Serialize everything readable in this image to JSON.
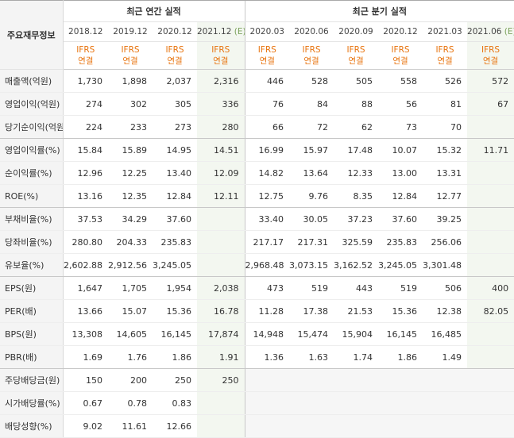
{
  "corner_label": "주요재무정보",
  "groups": {
    "annual": "최근 연간 실적",
    "quarterly": "최근 분기 실적"
  },
  "periods": [
    "2018.12",
    "2019.12",
    "2020.12",
    "2021.12",
    "2020.03",
    "2020.06",
    "2020.09",
    "2020.12",
    "2021.03",
    "2021.06"
  ],
  "estimate_tag": "(E)",
  "ifrs_top": "IFRS",
  "ifrs_bottom": "연결",
  "rows": [
    {
      "label": "매출액(억원)",
      "values": [
        "1,730",
        "1,898",
        "2,037",
        "2,316",
        "446",
        "528",
        "505",
        "558",
        "526",
        "572"
      ]
    },
    {
      "label": "영업이익(억원)",
      "values": [
        "274",
        "302",
        "305",
        "336",
        "76",
        "84",
        "88",
        "56",
        "81",
        "67"
      ]
    },
    {
      "label": "당기순이익(억원)",
      "values": [
        "224",
        "233",
        "273",
        "280",
        "66",
        "72",
        "62",
        "73",
        "70",
        ""
      ]
    },
    {
      "label": "영업이익률(%)",
      "values": [
        "15.84",
        "15.89",
        "14.95",
        "14.51",
        "16.99",
        "15.97",
        "17.48",
        "10.07",
        "15.32",
        "11.71"
      ]
    },
    {
      "label": "순이익률(%)",
      "values": [
        "12.96",
        "12.25",
        "13.40",
        "12.09",
        "14.82",
        "13.64",
        "12.33",
        "13.00",
        "13.31",
        ""
      ]
    },
    {
      "label": "ROE(%)",
      "values": [
        "13.16",
        "12.35",
        "12.84",
        "12.11",
        "12.75",
        "9.76",
        "8.35",
        "12.84",
        "12.77",
        ""
      ]
    },
    {
      "label": "부채비율(%)",
      "values": [
        "37.53",
        "34.29",
        "37.60",
        "",
        "33.40",
        "30.05",
        "37.23",
        "37.60",
        "39.25",
        ""
      ]
    },
    {
      "label": "당좌비율(%)",
      "values": [
        "280.80",
        "204.33",
        "235.83",
        "",
        "217.17",
        "217.31",
        "325.59",
        "235.83",
        "256.06",
        ""
      ]
    },
    {
      "label": "유보율(%)",
      "values": [
        "2,602.88",
        "2,912.56",
        "3,245.05",
        "",
        "2,968.48",
        "3,073.15",
        "3,162.52",
        "3,245.05",
        "3,301.48",
        ""
      ]
    },
    {
      "label": "EPS(원)",
      "values": [
        "1,647",
        "1,705",
        "1,954",
        "2,038",
        "473",
        "519",
        "443",
        "519",
        "506",
        "400"
      ]
    },
    {
      "label": "PER(배)",
      "values": [
        "13.66",
        "15.07",
        "15.36",
        "16.78",
        "11.28",
        "17.38",
        "21.53",
        "15.36",
        "12.38",
        "82.05"
      ]
    },
    {
      "label": "BPS(원)",
      "values": [
        "13,308",
        "14,605",
        "16,145",
        "17,874",
        "14,948",
        "15,474",
        "15,904",
        "16,145",
        "16,485",
        ""
      ]
    },
    {
      "label": "PBR(배)",
      "values": [
        "1.69",
        "1.76",
        "1.86",
        "1.91",
        "1.36",
        "1.63",
        "1.74",
        "1.86",
        "1.49",
        ""
      ]
    },
    {
      "label": "주당배당금(원)",
      "values": [
        "150",
        "200",
        "250",
        "250",
        "",
        "",
        "",
        "",
        "",
        ""
      ]
    },
    {
      "label": "시가배당률(%)",
      "values": [
        "0.67",
        "0.78",
        "0.83",
        "",
        "",
        "",
        "",
        "",
        "",
        ""
      ]
    },
    {
      "label": "배당성향(%)",
      "values": [
        "9.02",
        "11.61",
        "12.66",
        "",
        "",
        "",
        "",
        "",
        "",
        ""
      ]
    }
  ]
}
